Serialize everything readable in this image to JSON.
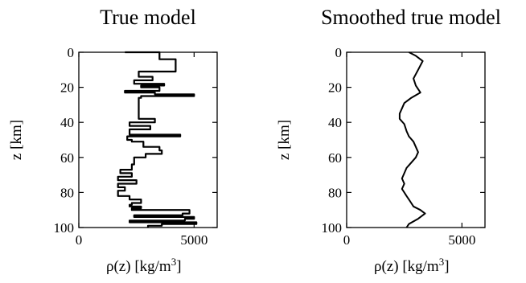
{
  "chart_data": [
    {
      "type": "line",
      "title": "True model",
      "xlabel": "ρ(z)  [kg/m3]",
      "ylabel": "z [km]",
      "xlim": [
        0,
        6000
      ],
      "ylim": [
        100,
        0
      ],
      "xticks": [
        "0",
        "5000"
      ],
      "yticks": [
        "0",
        "20",
        "40",
        "60",
        "80",
        "100"
      ],
      "series": [
        {
          "x": [
            2000,
            3500,
            3500,
            4200,
            4200,
            2600,
            2600,
            3200,
            3200,
            2400,
            2400,
            3700,
            3700,
            2700,
            2700,
            3500,
            3500,
            2000,
            2000,
            3300,
            3300,
            5000,
            5000,
            2700,
            2700,
            2600,
            2600,
            3300,
            3300,
            2200,
            2200,
            3100,
            3100,
            2200,
            2200,
            4400,
            4400,
            2100,
            2100,
            2300,
            2300,
            2800,
            2800,
            3500,
            3500,
            3600,
            3600,
            2900,
            2900,
            2400,
            2400,
            2300,
            2300,
            1800,
            1800,
            2300,
            2300,
            1700,
            1700,
            2500,
            2500,
            1700,
            1700,
            2000,
            2000,
            1700,
            1700,
            2200,
            2200,
            2700,
            2700,
            2300,
            2300,
            2200,
            2200,
            2700,
            2700,
            2300,
            2300,
            4800,
            4800,
            4500,
            4500,
            2400,
            2400,
            5000,
            5000,
            4600,
            4600,
            2200,
            2200,
            5100,
            5100,
            3600,
            3600,
            3000,
            3000
          ],
          "y": [
            0,
            0,
            4,
            4,
            11,
            11,
            14,
            14,
            16,
            16,
            18,
            18,
            19,
            19,
            20,
            20,
            22,
            22,
            23,
            23,
            24,
            24,
            25,
            25,
            26,
            26,
            38,
            38,
            40,
            40,
            42,
            42,
            44,
            44,
            47,
            47,
            48,
            48,
            50,
            50,
            51,
            51,
            54,
            54,
            56,
            56,
            58,
            58,
            60,
            60,
            64,
            64,
            67,
            67,
            69,
            69,
            71,
            71,
            73,
            73,
            75,
            75,
            77,
            77,
            79,
            79,
            82,
            82,
            84,
            84,
            86,
            86,
            87,
            87,
            88,
            88,
            89,
            89,
            90,
            90,
            92,
            92,
            93,
            93,
            94,
            94,
            95,
            95,
            96,
            96,
            97,
            97,
            98,
            98,
            99,
            99,
            100
          ]
        }
      ]
    },
    {
      "type": "line",
      "title": "Smoothed true model",
      "xlabel": "ρ(z)  [kg/m3]",
      "ylabel": "z [km]",
      "xlim": [
        0,
        6000
      ],
      "ylim": [
        100,
        0
      ],
      "xticks": [
        "0",
        "5000"
      ],
      "yticks": [
        "0",
        "20",
        "40",
        "60",
        "80",
        "100"
      ],
      "series": [
        {
          "x": [
            2700,
            3000,
            3300,
            3100,
            2900,
            3000,
            3200,
            2800,
            2500,
            2400,
            2300,
            2300,
            2500,
            2600,
            2700,
            2900,
            3000,
            3100,
            3000,
            2800,
            2600,
            2500,
            2400,
            2500,
            2400,
            2500,
            2600,
            2700,
            2800,
            2900,
            3200,
            3400,
            3100,
            2700,
            2600
          ],
          "y": [
            0,
            2,
            5,
            10,
            15,
            19,
            23,
            26,
            29,
            32,
            35,
            38,
            41,
            45,
            48,
            51,
            54,
            57,
            60,
            63,
            66,
            69,
            72,
            75,
            78,
            80,
            82,
            84,
            86,
            88,
            90,
            92,
            95,
            98,
            100
          ]
        }
      ]
    }
  ]
}
